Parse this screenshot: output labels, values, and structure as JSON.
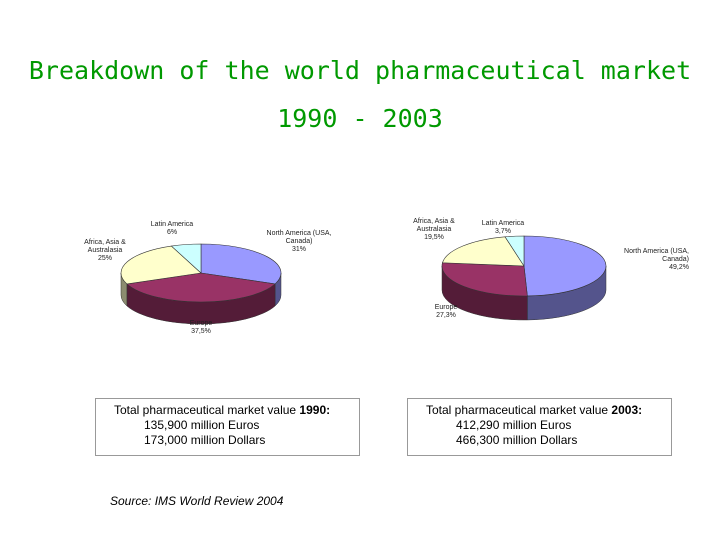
{
  "title_line1": "Breakdown of the world pharmaceutical market",
  "title_line2": "1990 - 2003",
  "colors": {
    "title": "#009900",
    "north_america": "#9999ff",
    "europe": "#993366",
    "africa_asia_australasia": "#ffffcc",
    "latin_america": "#ccffff"
  },
  "chart_data": [
    {
      "type": "pie",
      "title": "1990",
      "labels": [
        "North America (USA, Canada)",
        "Europe",
        "Africa, Asia & Australasia",
        "Latin America"
      ],
      "values": [
        31.0,
        37.5,
        25.0,
        6.0
      ],
      "value_labels": [
        "31%",
        "37,5%",
        "25%",
        "6%"
      ]
    },
    {
      "type": "pie",
      "title": "2003",
      "labels": [
        "North America (USA, Canada)",
        "Europe",
        "Africa, Asia & Australasia",
        "Latin America"
      ],
      "values": [
        49.2,
        27.3,
        19.5,
        3.7
      ],
      "value_labels": [
        "49,2%",
        "27,3%",
        "19,5%",
        "3,7%"
      ]
    }
  ],
  "labels_1990": {
    "latin": "Latin America\n6%",
    "north": "North America (USA,\nCanada)\n31%",
    "africa": "Africa, Asia &\nAustralasia\n25%",
    "europe": "Europe\n37,5%"
  },
  "labels_2003": {
    "africa": "Africa, Asia &\nAustralasia\n19,5%",
    "latin": "Latin America\n3,7%",
    "north": "North America (USA,\nCanada)\n49,2%",
    "europe": "Europe\n27,3%"
  },
  "box_1990": {
    "prefix": "Total pharmaceutical market value ",
    "year": "1990:",
    "euros": "135,900 million Euros",
    "dollars": "173,000 million Dollars"
  },
  "box_2003": {
    "prefix": "Total pharmaceutical market value ",
    "year": "2003:",
    "euros": "412,290 million Euros",
    "dollars": "466,300 million Dollars"
  },
  "source": "Source: IMS World Review 2004"
}
